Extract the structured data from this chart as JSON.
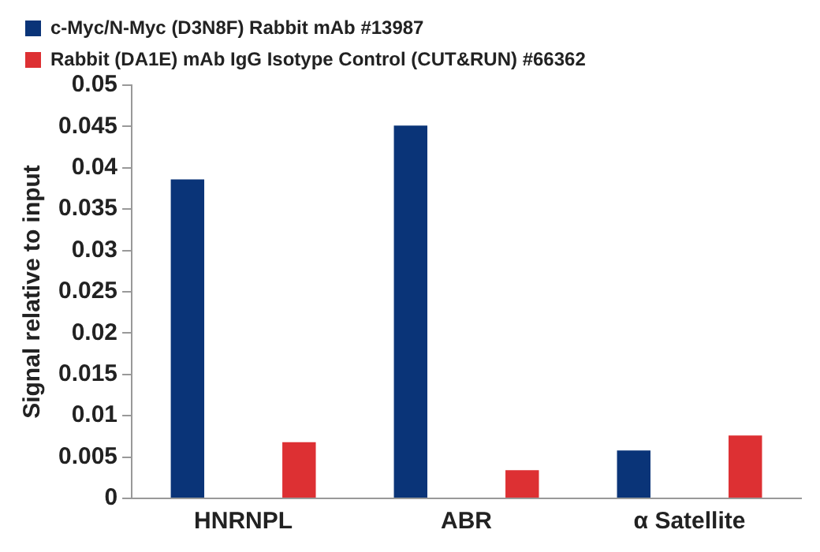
{
  "chart_data": {
    "type": "bar",
    "ylabel": "Signal relative to input",
    "categories": [
      "HNRNPL",
      "ABR",
      "α Satellite"
    ],
    "series": [
      {
        "name": "c-Myc/N-Myc (D3N8F) Rabbit mAb #13987",
        "color": "#0a3478",
        "values": [
          0.0386,
          0.0451,
          0.0058
        ]
      },
      {
        "name": "Rabbit (DA1E) mAb IgG Isotype Control (CUT&RUN) #66362",
        "color": "#dd3033",
        "values": [
          0.0068,
          0.0034,
          0.0076
        ]
      }
    ],
    "ylim": [
      0,
      0.05
    ],
    "yticks": [
      0,
      0.005,
      0.01,
      0.015,
      0.02,
      0.025,
      0.03,
      0.035,
      0.04,
      0.045,
      0.05
    ],
    "grid": false,
    "legend": "top"
  }
}
